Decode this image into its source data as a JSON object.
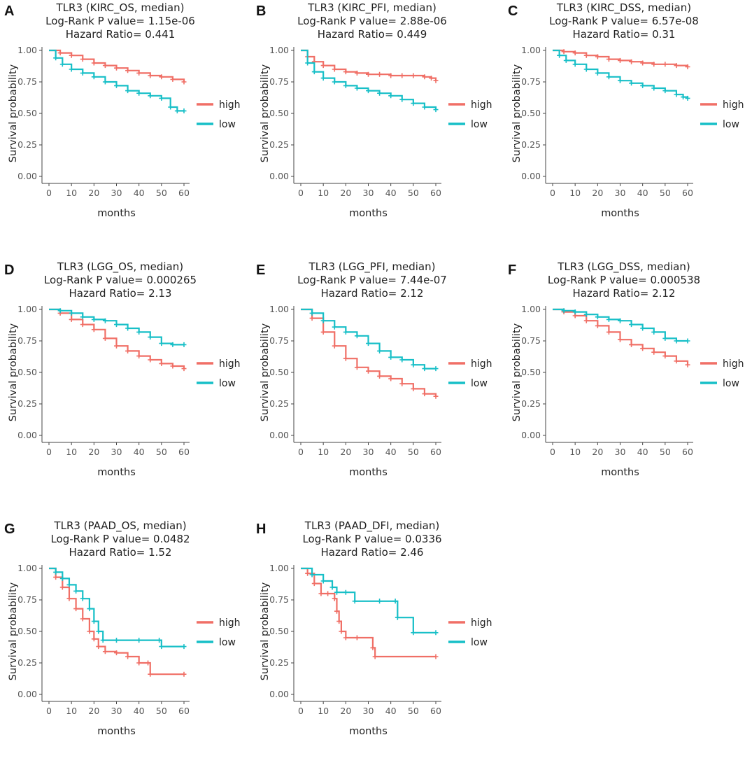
{
  "figure": {
    "series_names": [
      "high",
      "low"
    ],
    "colors": {
      "high": "#f06f66",
      "low": "#17bfc7"
    },
    "xlabel": "months",
    "ylabel": "Survival probability",
    "xticks": [
      "0",
      "10",
      "20",
      "30",
      "40",
      "50",
      "60"
    ],
    "yticks": [
      "0.00",
      "0.25",
      "0.50",
      "0.75",
      "1.00"
    ]
  },
  "chart_data": [
    {
      "type": "line",
      "letter": "A",
      "title": [
        "TLR3 (KIRC_OS, median)",
        "Log-Rank P value= 1.15e-06",
        "Hazard Ratio= 0.441"
      ],
      "xlabel": "months",
      "ylabel": "Survival probability",
      "xlim": [
        0,
        60
      ],
      "ylim": [
        0,
        1
      ],
      "series": [
        {
          "name": "high",
          "x": [
            0,
            5,
            10,
            15,
            20,
            25,
            30,
            35,
            40,
            45,
            50,
            55,
            60
          ],
          "y": [
            1.0,
            0.98,
            0.96,
            0.93,
            0.9,
            0.88,
            0.86,
            0.84,
            0.82,
            0.8,
            0.79,
            0.77,
            0.75
          ]
        },
        {
          "name": "low",
          "x": [
            0,
            3,
            6,
            10,
            15,
            20,
            25,
            30,
            35,
            40,
            45,
            50,
            54,
            57,
            60
          ],
          "y": [
            1.0,
            0.94,
            0.89,
            0.85,
            0.82,
            0.79,
            0.75,
            0.72,
            0.68,
            0.66,
            0.64,
            0.62,
            0.55,
            0.52,
            0.52
          ]
        }
      ]
    },
    {
      "type": "line",
      "letter": "B",
      "title": [
        "TLR3 (KIRC_PFI, median)",
        "Log-Rank P value= 2.88e-06",
        "Hazard Ratio= 0.449"
      ],
      "xlabel": "months",
      "ylabel": "Survival probability",
      "xlim": [
        0,
        60
      ],
      "ylim": [
        0,
        1
      ],
      "series": [
        {
          "name": "high",
          "x": [
            0,
            3,
            6,
            10,
            15,
            20,
            25,
            30,
            35,
            40,
            45,
            50,
            55,
            58,
            60
          ],
          "y": [
            1.0,
            0.95,
            0.91,
            0.88,
            0.85,
            0.83,
            0.82,
            0.81,
            0.81,
            0.8,
            0.8,
            0.8,
            0.79,
            0.78,
            0.76
          ]
        },
        {
          "name": "low",
          "x": [
            0,
            3,
            6,
            10,
            15,
            20,
            25,
            30,
            35,
            40,
            45,
            50,
            55,
            60
          ],
          "y": [
            1.0,
            0.9,
            0.83,
            0.78,
            0.75,
            0.72,
            0.7,
            0.68,
            0.66,
            0.64,
            0.61,
            0.58,
            0.55,
            0.53
          ]
        }
      ]
    },
    {
      "type": "line",
      "letter": "C",
      "title": [
        "TLR3 (KIRC_DSS, median)",
        "Log-Rank P value= 6.57e-08",
        "Hazard Ratio= 0.31"
      ],
      "xlabel": "months",
      "ylabel": "Survival probability",
      "xlim": [
        0,
        60
      ],
      "ylim": [
        0,
        1
      ],
      "series": [
        {
          "name": "high",
          "x": [
            0,
            5,
            10,
            15,
            20,
            25,
            30,
            35,
            40,
            45,
            50,
            55,
            60
          ],
          "y": [
            1.0,
            0.99,
            0.98,
            0.96,
            0.95,
            0.93,
            0.92,
            0.91,
            0.9,
            0.89,
            0.89,
            0.88,
            0.87
          ]
        },
        {
          "name": "low",
          "x": [
            0,
            3,
            6,
            10,
            15,
            20,
            25,
            30,
            35,
            40,
            45,
            50,
            55,
            58,
            60
          ],
          "y": [
            1.0,
            0.96,
            0.92,
            0.89,
            0.85,
            0.82,
            0.79,
            0.76,
            0.74,
            0.72,
            0.7,
            0.68,
            0.65,
            0.63,
            0.62
          ]
        }
      ]
    },
    {
      "type": "line",
      "letter": "D",
      "title": [
        "TLR3 (LGG_OS, median)",
        "Log-Rank P value= 0.000265",
        "Hazard Ratio= 2.13"
      ],
      "xlabel": "months",
      "ylabel": "Survival probability",
      "xlim": [
        0,
        60
      ],
      "ylim": [
        0,
        1
      ],
      "series": [
        {
          "name": "high",
          "x": [
            0,
            5,
            10,
            15,
            20,
            25,
            30,
            35,
            40,
            45,
            50,
            55,
            60
          ],
          "y": [
            1.0,
            0.97,
            0.92,
            0.88,
            0.84,
            0.77,
            0.71,
            0.67,
            0.63,
            0.6,
            0.57,
            0.55,
            0.53
          ]
        },
        {
          "name": "low",
          "x": [
            0,
            5,
            10,
            15,
            20,
            25,
            30,
            35,
            40,
            45,
            50,
            55,
            60
          ],
          "y": [
            1.0,
            0.99,
            0.97,
            0.94,
            0.92,
            0.91,
            0.88,
            0.85,
            0.82,
            0.78,
            0.73,
            0.72,
            0.72
          ]
        }
      ]
    },
    {
      "type": "line",
      "letter": "E",
      "title": [
        "TLR3 (LGG_PFI, median)",
        "Log-Rank P value= 7.44e-07",
        "Hazard Ratio= 2.12"
      ],
      "xlabel": "months",
      "ylabel": "Survival probability",
      "xlim": [
        0,
        60
      ],
      "ylim": [
        0,
        1
      ],
      "series": [
        {
          "name": "high",
          "x": [
            0,
            5,
            10,
            15,
            20,
            25,
            30,
            35,
            40,
            45,
            50,
            55,
            60
          ],
          "y": [
            1.0,
            0.93,
            0.82,
            0.71,
            0.61,
            0.54,
            0.51,
            0.47,
            0.45,
            0.41,
            0.37,
            0.33,
            0.31
          ]
        },
        {
          "name": "low",
          "x": [
            0,
            5,
            10,
            15,
            20,
            25,
            30,
            35,
            40,
            45,
            50,
            55,
            60
          ],
          "y": [
            1.0,
            0.97,
            0.91,
            0.86,
            0.82,
            0.79,
            0.73,
            0.67,
            0.62,
            0.6,
            0.56,
            0.53,
            0.53
          ]
        }
      ]
    },
    {
      "type": "line",
      "letter": "F",
      "title": [
        "TLR3 (LGG_DSS, median)",
        "Log-Rank P value= 0.000538",
        "Hazard Ratio= 2.12"
      ],
      "xlabel": "months",
      "ylabel": "Survival probability",
      "xlim": [
        0,
        60
      ],
      "ylim": [
        0,
        1
      ],
      "series": [
        {
          "name": "high",
          "x": [
            0,
            5,
            10,
            15,
            20,
            25,
            30,
            35,
            40,
            45,
            50,
            55,
            60
          ],
          "y": [
            1.0,
            0.98,
            0.95,
            0.91,
            0.87,
            0.82,
            0.76,
            0.72,
            0.69,
            0.66,
            0.63,
            0.59,
            0.56
          ]
        },
        {
          "name": "low",
          "x": [
            0,
            5,
            10,
            15,
            20,
            25,
            30,
            35,
            40,
            45,
            50,
            55,
            60
          ],
          "y": [
            1.0,
            0.99,
            0.98,
            0.96,
            0.94,
            0.92,
            0.91,
            0.88,
            0.85,
            0.82,
            0.77,
            0.75,
            0.75
          ]
        }
      ]
    },
    {
      "type": "line",
      "letter": "G",
      "title": [
        "TLR3 (PAAD_OS, median)",
        "Log-Rank P value= 0.0482",
        "Hazard Ratio= 1.52"
      ],
      "xlabel": "months",
      "ylabel": "Survival probability",
      "xlim": [
        0,
        60
      ],
      "ylim": [
        0,
        1
      ],
      "series": [
        {
          "name": "high",
          "x": [
            0,
            3,
            6,
            9,
            12,
            15,
            18,
            20,
            22,
            25,
            30,
            35,
            40,
            44,
            45,
            60
          ],
          "y": [
            1.0,
            0.93,
            0.85,
            0.76,
            0.68,
            0.6,
            0.5,
            0.44,
            0.38,
            0.34,
            0.33,
            0.3,
            0.25,
            0.25,
            0.16,
            0.16
          ]
        },
        {
          "name": "low",
          "x": [
            0,
            3,
            6,
            9,
            12,
            15,
            18,
            20,
            22,
            24,
            30,
            40,
            49,
            50,
            60
          ],
          "y": [
            1.0,
            0.97,
            0.92,
            0.87,
            0.82,
            0.76,
            0.68,
            0.58,
            0.5,
            0.43,
            0.43,
            0.43,
            0.43,
            0.38,
            0.38
          ]
        }
      ]
    },
    {
      "type": "line",
      "letter": "H",
      "title": [
        "TLR3 (PAAD_DFI, median)",
        "Log-Rank P value= 0.0336",
        "Hazard Ratio= 2.46"
      ],
      "xlabel": "months",
      "ylabel": "Survival probability",
      "xlim": [
        0,
        60
      ],
      "ylim": [
        0,
        1
      ],
      "series": [
        {
          "name": "high",
          "x": [
            0,
            3,
            6,
            9,
            12,
            15,
            16,
            17,
            18,
            20,
            25,
            32,
            33,
            60
          ],
          "y": [
            1.0,
            0.96,
            0.88,
            0.8,
            0.8,
            0.76,
            0.66,
            0.58,
            0.5,
            0.45,
            0.45,
            0.37,
            0.3,
            0.3
          ]
        },
        {
          "name": "low",
          "x": [
            0,
            5,
            10,
            14,
            16,
            20,
            24,
            35,
            42,
            43,
            50,
            60
          ],
          "y": [
            1.0,
            0.95,
            0.9,
            0.85,
            0.81,
            0.81,
            0.74,
            0.74,
            0.74,
            0.61,
            0.49,
            0.49
          ]
        }
      ]
    }
  ]
}
